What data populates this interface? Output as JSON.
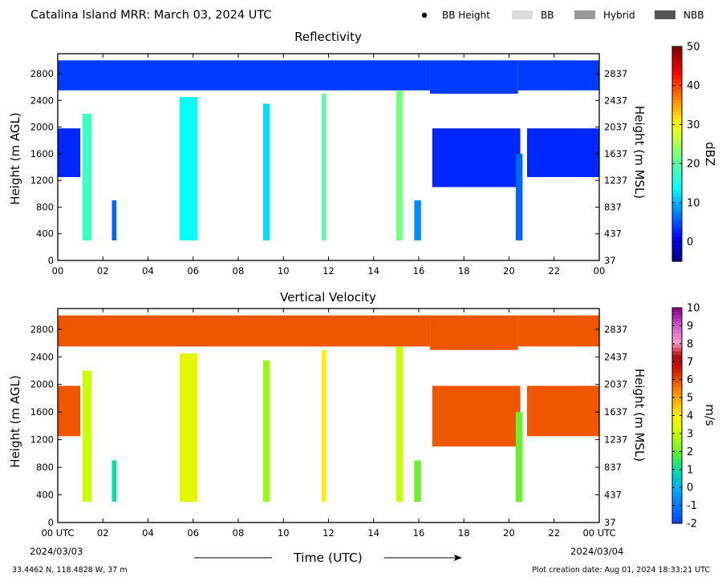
{
  "header": {
    "title": "Catalina Island MRR:  March 03, 2024 UTC",
    "legend": [
      {
        "label": "BB Height",
        "kind": "dot",
        "color": "#000000"
      },
      {
        "label": "BB",
        "kind": "swatch",
        "color": "#dcdcdc"
      },
      {
        "label": "Hybrid",
        "kind": "swatch",
        "color": "#999999"
      },
      {
        "label": "NBB",
        "kind": "swatch",
        "color": "#555555"
      }
    ]
  },
  "footer": {
    "location": "33.4462 N, 118.4828 W, 37 m",
    "creation": "Plot creation date: Aug 01, 2024 18:33:21 UTC",
    "xlabel": "Time (UTC)",
    "date_start": "2024/03/03",
    "date_end": "2024/03/04"
  },
  "chart_data": [
    {
      "type": "heatmap",
      "title": "Reflectivity",
      "ylabel": "Height (m AGL)",
      "ylabel_right": "Height (m MSL)",
      "colorbar_label": "dBZ",
      "x_ticks": [
        "00",
        "02",
        "04",
        "06",
        "08",
        "10",
        "12",
        "14",
        "16",
        "18",
        "20",
        "22",
        "00"
      ],
      "xlim": [
        0,
        24
      ],
      "y_ticks": [
        0,
        400,
        800,
        1200,
        1600,
        2000,
        2400,
        2800
      ],
      "y_ticks_right": [
        37,
        437,
        837,
        1237,
        1637,
        2037,
        2437,
        2837
      ],
      "ylim": [
        0,
        3100
      ],
      "cbar_ticks": [
        0,
        10,
        20,
        30,
        40,
        50
      ],
      "cbar_range": [
        -5,
        50
      ],
      "layers": [
        {
          "name": "upper-echo",
          "x": [
            0,
            24
          ],
          "y_bottom": 2550,
          "y_top": 3000,
          "value": 4,
          "gap": [
            16.5,
            20.4
          ],
          "gap_bottom": 2500
        },
        {
          "name": "left-cloud",
          "x": [
            0,
            1.0
          ],
          "y_bottom": 1250,
          "y_top": 1980,
          "value": 3
        },
        {
          "name": "big-cloud",
          "x": [
            16.6,
            20.5
          ],
          "y_bottom": 1100,
          "y_top": 1980,
          "value": 3
        },
        {
          "name": "right-cloud",
          "x": [
            20.8,
            24
          ],
          "y_bottom": 1250,
          "y_top": 1980,
          "value": 3
        }
      ],
      "columns": [
        {
          "x": [
            1.1,
            1.5
          ],
          "y": [
            300,
            2200
          ],
          "value": 18
        },
        {
          "x": [
            2.4,
            2.6
          ],
          "y": [
            300,
            900
          ],
          "value": 6
        },
        {
          "x": [
            5.4,
            6.2
          ],
          "y": [
            300,
            2450
          ],
          "value": 14
        },
        {
          "x": [
            9.1,
            9.4
          ],
          "y": [
            300,
            2350
          ],
          "value": 12
        },
        {
          "x": [
            11.7,
            11.9
          ],
          "y": [
            300,
            2500
          ],
          "value": 20
        },
        {
          "x": [
            15.0,
            15.3
          ],
          "y": [
            300,
            2550
          ],
          "value": 22
        },
        {
          "x": [
            15.8,
            16.1
          ],
          "y": [
            300,
            900
          ],
          "value": 8
        },
        {
          "x": [
            20.3,
            20.6
          ],
          "y": [
            300,
            1600
          ],
          "value": 6
        }
      ]
    },
    {
      "type": "heatmap",
      "title": "Vertical Velocity",
      "ylabel": "Height (m AGL)",
      "ylabel_right": "Height (m MSL)",
      "colorbar_label": "m/s",
      "x_ticks": [
        "00 UTC",
        "02",
        "04",
        "06",
        "08",
        "10",
        "12",
        "14",
        "16",
        "18",
        "20",
        "22",
        "00 UTC"
      ],
      "xlim": [
        0,
        24
      ],
      "y_ticks": [
        0,
        400,
        800,
        1200,
        1600,
        2000,
        2400,
        2800
      ],
      "y_ticks_right": [
        37,
        437,
        837,
        1237,
        1637,
        2037,
        2437,
        2837
      ],
      "ylim": [
        0,
        3100
      ],
      "cbar_ticks": [
        -2,
        -1,
        0,
        1,
        2,
        3,
        4,
        5,
        6,
        7,
        8,
        9,
        10
      ],
      "cbar_range": [
        -2,
        10
      ],
      "layers": [
        {
          "name": "upper-echo",
          "x": [
            0,
            24
          ],
          "y_bottom": 2550,
          "y_top": 3000,
          "value": 5.9,
          "gap": [
            16.5,
            20.4
          ],
          "gap_bottom": 2500
        },
        {
          "name": "left-cloud",
          "x": [
            0,
            1.0
          ],
          "y_bottom": 1250,
          "y_top": 1980,
          "value": 5.9
        },
        {
          "name": "big-cloud",
          "x": [
            16.6,
            20.5
          ],
          "y_bottom": 1100,
          "y_top": 1980,
          "value": 5.9
        },
        {
          "name": "right-cloud",
          "x": [
            20.8,
            24
          ],
          "y_bottom": 1250,
          "y_top": 1980,
          "value": 5.9
        }
      ],
      "columns": [
        {
          "x": [
            1.1,
            1.5
          ],
          "y": [
            300,
            2200
          ],
          "value": 3
        },
        {
          "x": [
            2.4,
            2.6
          ],
          "y": [
            300,
            900
          ],
          "value": 1
        },
        {
          "x": [
            5.4,
            6.2
          ],
          "y": [
            300,
            2450
          ],
          "value": 3.5
        },
        {
          "x": [
            9.1,
            9.4
          ],
          "y": [
            300,
            2350
          ],
          "value": 2.5
        },
        {
          "x": [
            11.7,
            11.9
          ],
          "y": [
            300,
            2500
          ],
          "value": 4
        },
        {
          "x": [
            15.0,
            15.3
          ],
          "y": [
            300,
            2550
          ],
          "value": 3
        },
        {
          "x": [
            15.8,
            16.1
          ],
          "y": [
            300,
            900
          ],
          "value": 2
        },
        {
          "x": [
            20.3,
            20.6
          ],
          "y": [
            300,
            1600
          ],
          "value": 2
        }
      ]
    }
  ]
}
